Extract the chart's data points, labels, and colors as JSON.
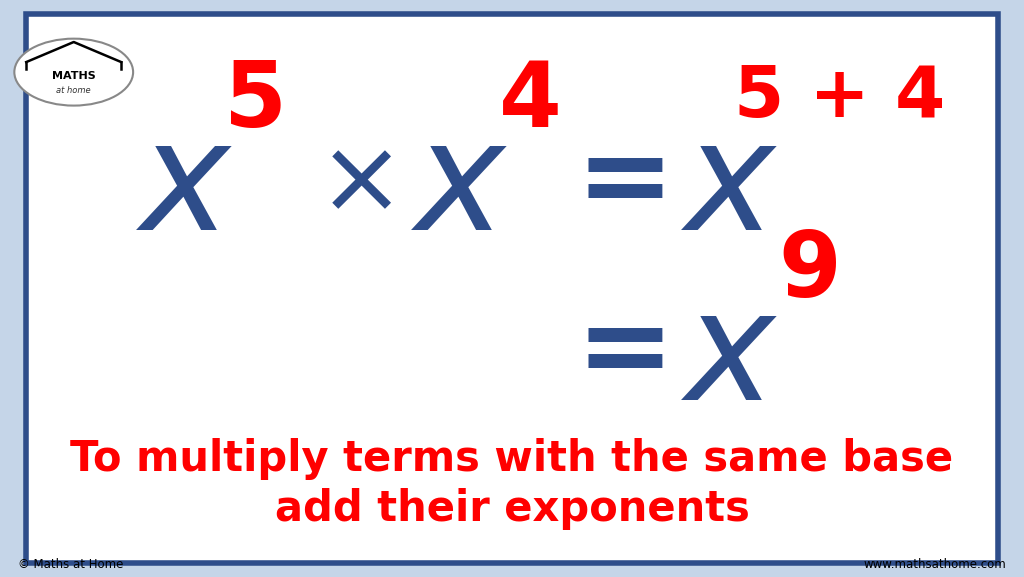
{
  "bg_color": "#c5d5e8",
  "inner_bg_color": "#ffffff",
  "border_color": "#2e4d8a",
  "title_line1": "To multiply terms with the same base",
  "title_line2": "add their exponents",
  "text_color_red": "#ff0000",
  "text_color_blue": "#2e4d8a",
  "copyright_left": "© Maths at Home",
  "copyright_right": "www.mathsathome.com"
}
